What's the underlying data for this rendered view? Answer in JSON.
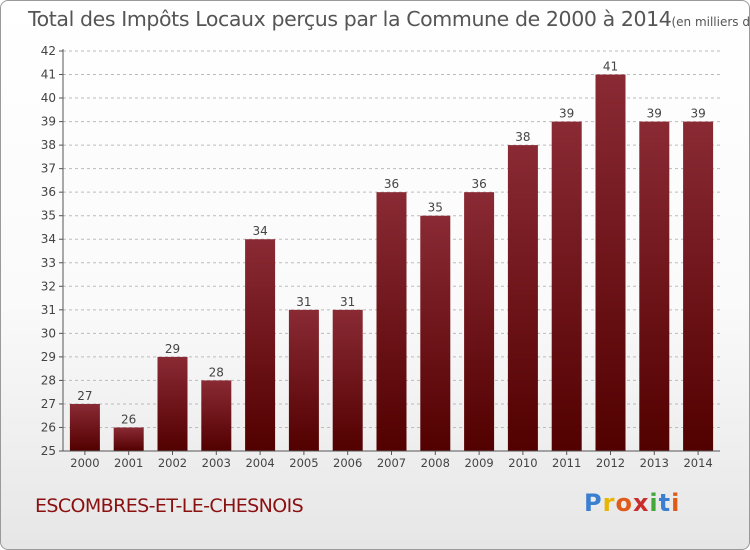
{
  "colors": {
    "bar_top": "#8a2a34",
    "bar_bottom": "#520000",
    "grid": "#bbbbbb",
    "text": "#444444",
    "commune": "#8b1010"
  },
  "chart_data": {
    "type": "bar",
    "title": "Total des Impôts Locaux perçus par la Commune de 2000 à 2014",
    "unit_label": "(en milliers d'€)",
    "categories": [
      "2000",
      "2001",
      "2002",
      "2003",
      "2004",
      "2005",
      "2006",
      "2007",
      "2008",
      "2009",
      "2010",
      "2011",
      "2012",
      "2013",
      "2014"
    ],
    "values": [
      27,
      26,
      29,
      28,
      34,
      31,
      31,
      36,
      35,
      36,
      38,
      39,
      41,
      39,
      39
    ],
    "ylim": [
      25,
      42
    ],
    "yticks": [
      25,
      26,
      27,
      28,
      29,
      30,
      31,
      32,
      33,
      34,
      35,
      36,
      37,
      38,
      39,
      40,
      41,
      42
    ],
    "xlabel": "",
    "ylabel": "",
    "grid": true,
    "data_labels": true
  },
  "footer": {
    "commune": "ESCOMBRES-ET-LE-CHESNOIS"
  },
  "logo": {
    "letters": [
      "P",
      "r",
      "o",
      "x",
      "i",
      "t",
      "i"
    ],
    "colors": [
      "#3a7fd0",
      "#e8b500",
      "#e05a1a",
      "#c92d2d",
      "#45a83a",
      "#3a7fd0",
      "#e05a1a"
    ]
  }
}
